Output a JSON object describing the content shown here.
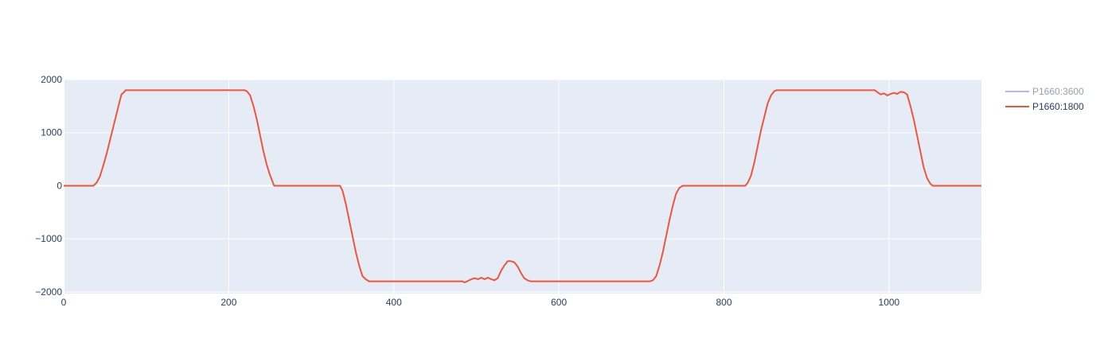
{
  "chart_data": {
    "type": "line",
    "title": "",
    "xlabel": "",
    "ylabel": "",
    "xlim": [
      0,
      1112
    ],
    "ylim": [
      -2030,
      2000
    ],
    "x_ticks": [
      0,
      200,
      400,
      600,
      800,
      1000
    ],
    "y_ticks": [
      2000,
      1000,
      0,
      -1000,
      -2000
    ],
    "x_tick_labels": [
      "0",
      "200",
      "400",
      "600",
      "800",
      "1000"
    ],
    "y_tick_labels": [
      "2000",
      "1000",
      "0",
      "−1000",
      "−2000"
    ],
    "grid": true,
    "legend_position": "top-right",
    "series": [
      {
        "name": "P1660:3600",
        "color": "#636efa",
        "visible": false,
        "points": []
      },
      {
        "name": "P1660:1800",
        "color": "#ef553b",
        "visible": true,
        "points": [
          [
            0,
            0
          ],
          [
            36,
            0
          ],
          [
            40,
            60
          ],
          [
            44,
            180
          ],
          [
            48,
            380
          ],
          [
            52,
            600
          ],
          [
            56,
            850
          ],
          [
            60,
            1100
          ],
          [
            64,
            1350
          ],
          [
            68,
            1600
          ],
          [
            70,
            1720
          ],
          [
            73,
            1760
          ],
          [
            75,
            1800
          ],
          [
            219,
            1800
          ],
          [
            222,
            1780
          ],
          [
            226,
            1700
          ],
          [
            230,
            1500
          ],
          [
            234,
            1250
          ],
          [
            238,
            950
          ],
          [
            242,
            650
          ],
          [
            246,
            400
          ],
          [
            250,
            200
          ],
          [
            253,
            80
          ],
          [
            255,
            0
          ],
          [
            335,
            0
          ],
          [
            338,
            -100
          ],
          [
            342,
            -350
          ],
          [
            346,
            -650
          ],
          [
            350,
            -950
          ],
          [
            354,
            -1250
          ],
          [
            358,
            -1500
          ],
          [
            362,
            -1700
          ],
          [
            366,
            -1760
          ],
          [
            370,
            -1800
          ],
          [
            483,
            -1800
          ],
          [
            486,
            -1820
          ],
          [
            490,
            -1790
          ],
          [
            494,
            -1760
          ],
          [
            498,
            -1740
          ],
          [
            502,
            -1760
          ],
          [
            506,
            -1730
          ],
          [
            510,
            -1760
          ],
          [
            514,
            -1730
          ],
          [
            518,
            -1760
          ],
          [
            522,
            -1780
          ],
          [
            526,
            -1740
          ],
          [
            530,
            -1600
          ],
          [
            534,
            -1500
          ],
          [
            538,
            -1420
          ],
          [
            542,
            -1420
          ],
          [
            546,
            -1440
          ],
          [
            550,
            -1520
          ],
          [
            554,
            -1640
          ],
          [
            558,
            -1740
          ],
          [
            562,
            -1780
          ],
          [
            566,
            -1800
          ],
          [
            710,
            -1800
          ],
          [
            714,
            -1780
          ],
          [
            718,
            -1700
          ],
          [
            722,
            -1500
          ],
          [
            726,
            -1250
          ],
          [
            730,
            -950
          ],
          [
            734,
            -650
          ],
          [
            738,
            -380
          ],
          [
            742,
            -150
          ],
          [
            746,
            -40
          ],
          [
            750,
            0
          ],
          [
            826,
            0
          ],
          [
            829,
            60
          ],
          [
            833,
            200
          ],
          [
            837,
            450
          ],
          [
            841,
            750
          ],
          [
            845,
            1050
          ],
          [
            849,
            1300
          ],
          [
            853,
            1550
          ],
          [
            857,
            1700
          ],
          [
            861,
            1780
          ],
          [
            864,
            1800
          ],
          [
            983,
            1800
          ],
          [
            986,
            1760
          ],
          [
            990,
            1720
          ],
          [
            994,
            1740
          ],
          [
            998,
            1700
          ],
          [
            1002,
            1730
          ],
          [
            1006,
            1750
          ],
          [
            1010,
            1730
          ],
          [
            1014,
            1770
          ],
          [
            1018,
            1760
          ],
          [
            1022,
            1720
          ],
          [
            1026,
            1500
          ],
          [
            1030,
            1250
          ],
          [
            1034,
            950
          ],
          [
            1038,
            650
          ],
          [
            1042,
            350
          ],
          [
            1046,
            150
          ],
          [
            1050,
            40
          ],
          [
            1053,
            0
          ],
          [
            1112,
            0
          ]
        ]
      }
    ]
  }
}
